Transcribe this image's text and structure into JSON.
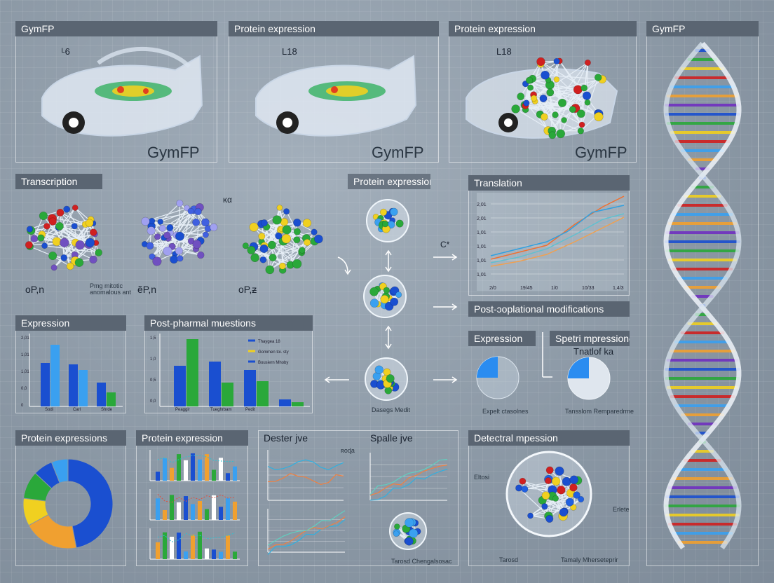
{
  "top_panels": [
    {
      "title": "GymFP",
      "tag": "ᴸ6",
      "caption": "GymFP"
    },
    {
      "title": "Protein expression",
      "tag": "L18",
      "caption": "GymFP"
    },
    {
      "title": "Protein expression",
      "tag": "L18",
      "caption": "GymFP"
    }
  ],
  "dna_panel": {
    "title": "GymFP"
  },
  "transcription": {
    "title": "Transcription",
    "labels": [
      "oP,n",
      "ẽP,n",
      "oP,ƶ"
    ],
    "note": "ĸα",
    "tiny_text": "Pmg mitotic anomalous ant"
  },
  "protein_expression_center": {
    "title": "Protein expression",
    "side_label": "C*",
    "bottom_caption": "Dasegs Medit"
  },
  "translation": {
    "title": "Translation",
    "y_ticks": [
      "2,01",
      "2,01",
      "1,01",
      "1,01",
      "1,01",
      "1,01"
    ],
    "x_ticks": [
      "2/0",
      "19/45",
      "1/0",
      "10/33",
      "1,4/3"
    ]
  },
  "post_translational": {
    "title": "Post-ɔoplational modifications"
  },
  "expression_bar": {
    "title": "Expression",
    "y_ticks": [
      "2,01",
      "1,01",
      "1,01",
      "0,0",
      "0"
    ],
    "categories": [
      "Sodi",
      "Carl",
      "Shrde"
    ]
  },
  "post_questions": {
    "title": "Post-pharmal muestions",
    "legend": [
      "Thaygea 18",
      "Gommen toi. sty",
      "Bousiern Mhoby"
    ],
    "categories": [
      "Peaggir",
      "Tueghrbam",
      "Pedit"
    ]
  },
  "expression_pie": {
    "title": "Expression",
    "caption": "Expelt ctasolnes"
  },
  "spectral": {
    "title": "Spetri mpressione",
    "subtitle": "Tnatlof ka",
    "caption": "Tansslom Remparedrme"
  },
  "protein_expressions_donut": {
    "title": "Protein expressions"
  },
  "protein_expression_small": {
    "title": "Protein expression"
  },
  "dester": {
    "title": "Dester jve",
    "title2": "Spalle jve",
    "note": "ʀoɖa",
    "caption": "Tarosd Chengalsosac"
  },
  "detectral": {
    "title": "Detectral mpession",
    "note_left": "Eltosi",
    "note_right": "Erlete",
    "captions": [
      "Tarosd",
      "Tamaly Mherseteprir"
    ]
  },
  "colors": {
    "blue": "#1a4fd0",
    "lightblue": "#3aa0f0",
    "green": "#2aa83a",
    "yellow": "#f0d020",
    "orange": "#f0a030",
    "red": "#d02020"
  }
}
